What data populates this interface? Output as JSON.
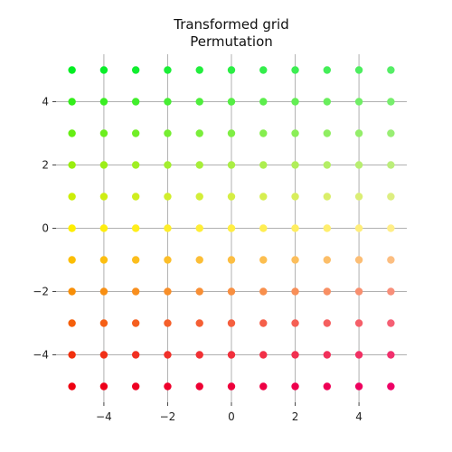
{
  "chart_data": {
    "type": "scatter",
    "title_lines": [
      "Transformed grid",
      "Permutation"
    ],
    "xlabel": "",
    "ylabel": "",
    "xlim": [
      -5.5,
      5.5
    ],
    "ylim": [
      -5.5,
      5.5
    ],
    "x_ticks": [
      -4,
      -2,
      0,
      2,
      4
    ],
    "y_ticks": [
      -4,
      -2,
      0,
      2,
      4
    ],
    "x_tick_labels": [
      "−4",
      "−2",
      "0",
      "2",
      "4"
    ],
    "y_tick_labels": [
      "−4",
      "−2",
      "0",
      "2",
      "4"
    ],
    "grid": true,
    "grid_x": [
      -4,
      -2,
      0,
      2,
      4
    ],
    "grid_y": [
      -4,
      -2,
      0,
      2,
      4
    ],
    "point_grid": {
      "x_values": [
        -5,
        -4,
        -3,
        -2,
        -1,
        0,
        1,
        2,
        3,
        4,
        5
      ],
      "y_values": [
        -5,
        -4,
        -3,
        -2,
        -1,
        0,
        1,
        2,
        3,
        4,
        5
      ]
    },
    "color_mapping": {
      "bottom_left": "#ee0011",
      "bottom_right": "#ee0066",
      "middle_left": "#ffee00",
      "middle_right": "#ffee88",
      "top_left": "#00ee22",
      "top_right": "#55ee66"
    }
  }
}
